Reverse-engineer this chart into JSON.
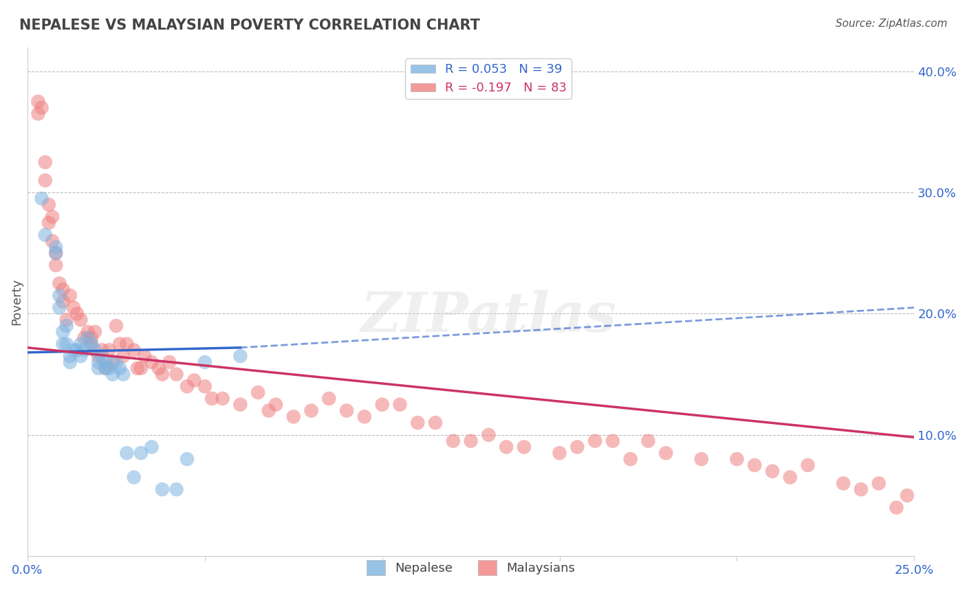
{
  "title": "NEPALESE VS MALAYSIAN POVERTY CORRELATION CHART",
  "source": "Source: ZipAtlas.com",
  "ylabel": "Poverty",
  "xlim": [
    0.0,
    0.25
  ],
  "ylim": [
    0.0,
    0.42
  ],
  "xticks": [
    0.0,
    0.05,
    0.1,
    0.15,
    0.2,
    0.25
  ],
  "xticklabels": [
    "0.0%",
    "",
    "",
    "",
    "",
    "25.0%"
  ],
  "yticks": [
    0.1,
    0.2,
    0.3,
    0.4
  ],
  "yticklabels": [
    "10.0%",
    "20.0%",
    "30.0%",
    "40.0%"
  ],
  "r_nepalese": 0.053,
  "n_nepalese": 39,
  "r_malaysian": -0.197,
  "n_malaysian": 83,
  "nepalese_color": "#7EB3E0",
  "malaysian_color": "#F08080",
  "trend_nepalese_color": "#3366CC",
  "trend_malaysian_color": "#CC3366",
  "watermark": "ZIPatlas",
  "nepalese_x": [
    0.004,
    0.005,
    0.008,
    0.008,
    0.009,
    0.009,
    0.01,
    0.01,
    0.011,
    0.011,
    0.012,
    0.012,
    0.013,
    0.014,
    0.015,
    0.015,
    0.016,
    0.017,
    0.018,
    0.019,
    0.02,
    0.02,
    0.021,
    0.022,
    0.022,
    0.023,
    0.024,
    0.025,
    0.026,
    0.027,
    0.028,
    0.03,
    0.032,
    0.035,
    0.038,
    0.042,
    0.045,
    0.05,
    0.06
  ],
  "nepalese_y": [
    0.295,
    0.265,
    0.255,
    0.25,
    0.215,
    0.205,
    0.185,
    0.175,
    0.19,
    0.175,
    0.165,
    0.16,
    0.17,
    0.17,
    0.175,
    0.165,
    0.17,
    0.18,
    0.175,
    0.17,
    0.16,
    0.155,
    0.165,
    0.16,
    0.155,
    0.155,
    0.15,
    0.16,
    0.155,
    0.15,
    0.085,
    0.065,
    0.085,
    0.09,
    0.055,
    0.055,
    0.08,
    0.16,
    0.165
  ],
  "malaysian_x": [
    0.003,
    0.003,
    0.004,
    0.005,
    0.005,
    0.006,
    0.006,
    0.007,
    0.007,
    0.008,
    0.008,
    0.009,
    0.01,
    0.01,
    0.011,
    0.012,
    0.013,
    0.014,
    0.015,
    0.016,
    0.017,
    0.018,
    0.018,
    0.019,
    0.02,
    0.021,
    0.022,
    0.023,
    0.024,
    0.025,
    0.026,
    0.027,
    0.028,
    0.03,
    0.031,
    0.032,
    0.033,
    0.035,
    0.037,
    0.038,
    0.04,
    0.042,
    0.045,
    0.047,
    0.05,
    0.052,
    0.055,
    0.06,
    0.065,
    0.068,
    0.07,
    0.075,
    0.08,
    0.085,
    0.09,
    0.095,
    0.1,
    0.105,
    0.11,
    0.115,
    0.12,
    0.125,
    0.13,
    0.135,
    0.14,
    0.15,
    0.155,
    0.16,
    0.165,
    0.17,
    0.175,
    0.18,
    0.19,
    0.2,
    0.205,
    0.21,
    0.215,
    0.22,
    0.23,
    0.235,
    0.24,
    0.245,
    0.248
  ],
  "malaysian_y": [
    0.375,
    0.365,
    0.37,
    0.325,
    0.31,
    0.29,
    0.275,
    0.28,
    0.26,
    0.25,
    0.24,
    0.225,
    0.22,
    0.21,
    0.195,
    0.215,
    0.205,
    0.2,
    0.195,
    0.18,
    0.185,
    0.18,
    0.175,
    0.185,
    0.165,
    0.17,
    0.155,
    0.17,
    0.16,
    0.19,
    0.175,
    0.165,
    0.175,
    0.17,
    0.155,
    0.155,
    0.165,
    0.16,
    0.155,
    0.15,
    0.16,
    0.15,
    0.14,
    0.145,
    0.14,
    0.13,
    0.13,
    0.125,
    0.135,
    0.12,
    0.125,
    0.115,
    0.12,
    0.13,
    0.12,
    0.115,
    0.125,
    0.125,
    0.11,
    0.11,
    0.095,
    0.095,
    0.1,
    0.09,
    0.09,
    0.085,
    0.09,
    0.095,
    0.095,
    0.08,
    0.095,
    0.085,
    0.08,
    0.08,
    0.075,
    0.07,
    0.065,
    0.075,
    0.06,
    0.055,
    0.06,
    0.04,
    0.05
  ],
  "nep_trend_x0": 0.0,
  "nep_trend_y0": 0.168,
  "nep_trend_x1": 0.06,
  "nep_trend_y1": 0.172,
  "nep_trend_xdash1": 0.06,
  "nep_trend_ydash1": 0.172,
  "nep_trend_xdash2": 0.25,
  "nep_trend_ydash2": 0.205,
  "mal_trend_x0": 0.0,
  "mal_trend_y0": 0.172,
  "mal_trend_x1": 0.25,
  "mal_trend_y1": 0.098
}
